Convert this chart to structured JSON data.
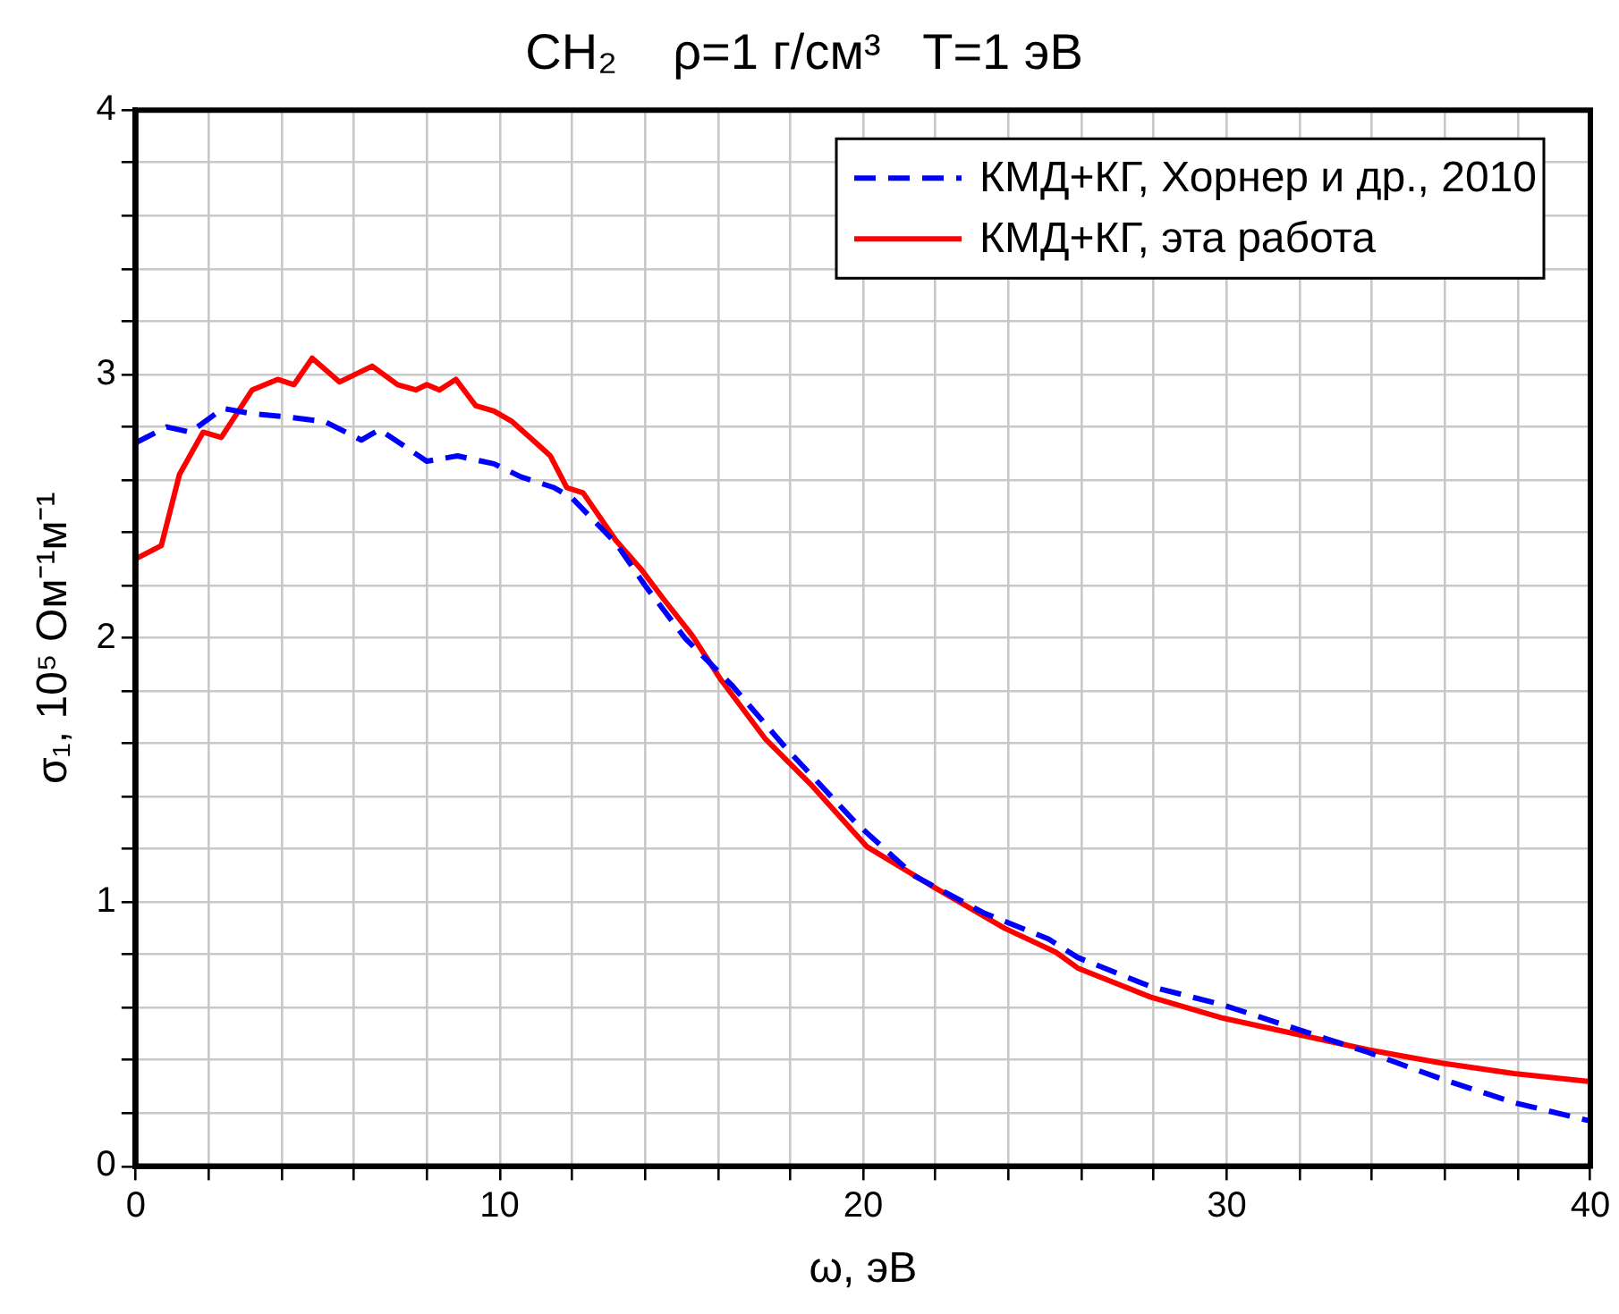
{
  "chart_data": {
    "type": "line",
    "title": "CH₂    ρ=1 г/см³   T=1 эВ",
    "xlabel": "ω, эВ",
    "ylabel": "σ₁, 10⁵ Ом⁻¹м⁻¹",
    "xlim": [
      0,
      40
    ],
    "ylim": [
      0,
      4
    ],
    "xticks": [
      0,
      {
        "value": 2,
        "label": null
      },
      {
        "value": 4,
        "label": null
      },
      {
        "value": 6,
        "label": null
      },
      {
        "value": 8,
        "label": null
      },
      10,
      {
        "value": 12,
        "label": null
      },
      {
        "value": 14,
        "label": null
      },
      {
        "value": 16,
        "label": null
      },
      {
        "value": 18,
        "label": null
      },
      20,
      {
        "value": 22,
        "label": null
      },
      {
        "value": 24,
        "label": null
      },
      {
        "value": 26,
        "label": null
      },
      {
        "value": 28,
        "label": null
      },
      30,
      {
        "value": 32,
        "label": null
      },
      {
        "value": 34,
        "label": null
      },
      {
        "value": 36,
        "label": null
      },
      {
        "value": 38,
        "label": null
      },
      40
    ],
    "yticks": [
      0,
      {
        "value": 0.2,
        "label": null
      },
      {
        "value": 0.4,
        "label": null
      },
      {
        "value": 0.6,
        "label": null
      },
      {
        "value": 0.8,
        "label": null
      },
      1,
      {
        "value": 1.2,
        "label": null
      },
      {
        "value": 1.4,
        "label": null
      },
      {
        "value": 1.6,
        "label": null
      },
      {
        "value": 1.8,
        "label": null
      },
      2,
      {
        "value": 2.2,
        "label": null
      },
      {
        "value": 2.4,
        "label": null
      },
      {
        "value": 2.6,
        "label": null
      },
      {
        "value": 2.8,
        "label": null
      },
      3,
      {
        "value": 3.2,
        "label": null
      },
      {
        "value": 3.4,
        "label": null
      },
      {
        "value": 3.6,
        "label": null
      },
      {
        "value": 3.8,
        "label": null
      },
      4
    ],
    "grid": true,
    "legend": "top right",
    "marker": "none",
    "series": [
      {
        "name": "КМД+КГ, Хорнер и др., 2010",
        "color": "#0000ff",
        "line_style": "dashed",
        "x": [
          0,
          0.85,
          1.5,
          2.4,
          3.2,
          4,
          5.2,
          6.2,
          6.7,
          8,
          8.85,
          9.85,
          10.6,
          11.5,
          12,
          13.2,
          14,
          15.1,
          16.4,
          17.9,
          19.8,
          21.4,
          23.3,
          25.1,
          25.9,
          27.9,
          29.9,
          31.9,
          33.9,
          35.9,
          37.9,
          40
        ],
        "values": [
          2.74,
          2.8,
          2.78,
          2.87,
          2.85,
          2.84,
          2.82,
          2.75,
          2.79,
          2.67,
          2.69,
          2.66,
          2.61,
          2.57,
          2.53,
          2.36,
          2.2,
          2.0,
          1.82,
          1.58,
          1.3,
          1.1,
          0.96,
          0.86,
          0.79,
          0.68,
          0.61,
          0.52,
          0.43,
          0.33,
          0.24,
          0.17
        ]
      },
      {
        "name": "КМД+КГ, эта работа",
        "color": "#ff0000",
        "line_style": "solid",
        "x": [
          0,
          0.7,
          1.2,
          1.85,
          2.35,
          3.2,
          3.9,
          4.35,
          4.85,
          5.6,
          6.5,
          7.2,
          7.7,
          8,
          8.35,
          8.8,
          9.35,
          9.85,
          10.35,
          11,
          11.4,
          11.85,
          12.3,
          13.2,
          13.9,
          14.5,
          15.3,
          16.1,
          17.3,
          18.6,
          20.1,
          21.9,
          23.9,
          25.3,
          25.9,
          27.9,
          29.9,
          31.9,
          33.9,
          35.9,
          37.9,
          40
        ],
        "values": [
          2.3,
          2.35,
          2.62,
          2.78,
          2.76,
          2.94,
          2.98,
          2.96,
          3.06,
          2.97,
          3.03,
          2.96,
          2.94,
          2.96,
          2.94,
          2.98,
          2.88,
          2.86,
          2.82,
          2.74,
          2.69,
          2.57,
          2.55,
          2.37,
          2.26,
          2.15,
          2.01,
          1.84,
          1.62,
          1.44,
          1.21,
          1.06,
          0.9,
          0.81,
          0.75,
          0.64,
          0.56,
          0.5,
          0.44,
          0.39,
          0.35,
          0.32
        ]
      }
    ]
  }
}
